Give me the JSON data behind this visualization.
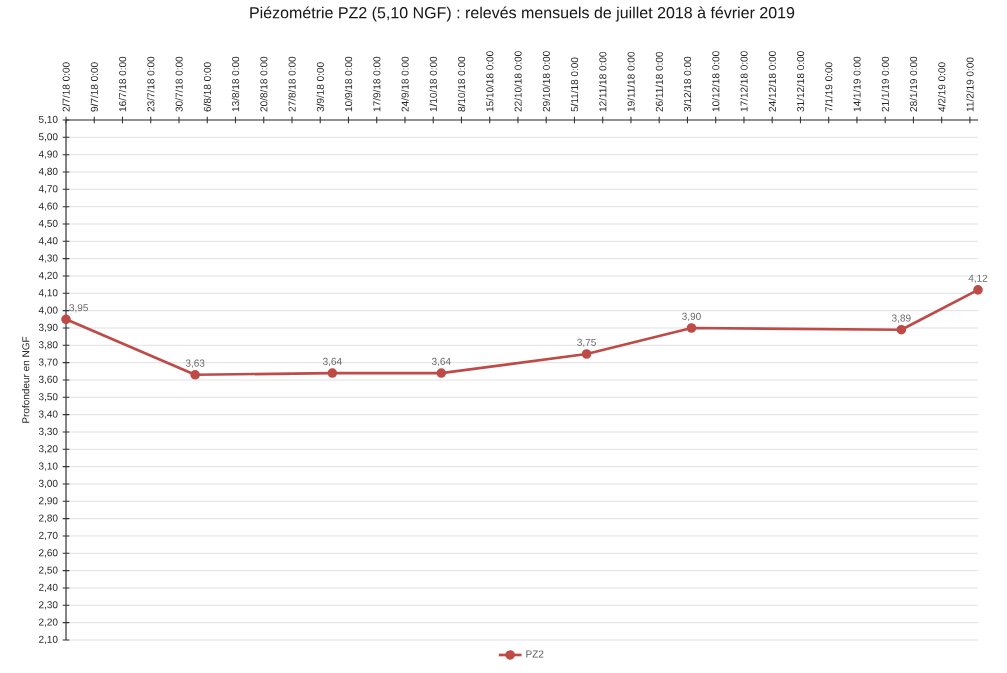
{
  "chart_data": {
    "type": "line",
    "title": "Piézométrie PZ2 (5,10 NGF) : relevés mensuels de juillet 2018 à février 2019",
    "ylabel": "Profondeur en NGF",
    "x": [
      "2018-07-02",
      "2018-08-03",
      "2018-09-06",
      "2018-10-03",
      "2018-11-08",
      "2018-12-04",
      "2019-01-25",
      "2019-02-13"
    ],
    "series": [
      {
        "name": "PZ2",
        "color": "#be4b48",
        "values": [
          3.95,
          3.63,
          3.64,
          3.64,
          3.75,
          3.9,
          3.89,
          4.12
        ],
        "value_labels": [
          "3,95",
          "3,63",
          "3,64",
          "3,64",
          "3,75",
          "3,90",
          "3,89",
          "4,12"
        ]
      }
    ],
    "xlim": [
      "2018-07-02",
      "2019-02-13"
    ],
    "xticks": [
      {
        "value": "2018-07-02",
        "label": "2/7/18 0:00"
      },
      {
        "value": "2018-07-09",
        "label": "9/7/18 0:00"
      },
      {
        "value": "2018-07-16",
        "label": "16/7/18 0:00"
      },
      {
        "value": "2018-07-23",
        "label": "23/7/18 0:00"
      },
      {
        "value": "2018-07-30",
        "label": "30/7/18 0:00"
      },
      {
        "value": "2018-08-06",
        "label": "6/8/18 0:00"
      },
      {
        "value": "2018-08-13",
        "label": "13/8/18 0:00"
      },
      {
        "value": "2018-08-20",
        "label": "20/8/18 0:00"
      },
      {
        "value": "2018-08-27",
        "label": "27/8/18 0:00"
      },
      {
        "value": "2018-09-03",
        "label": "3/9/18 0:00"
      },
      {
        "value": "2018-09-10",
        "label": "10/9/18 0:00"
      },
      {
        "value": "2018-09-17",
        "label": "17/9/18 0:00"
      },
      {
        "value": "2018-09-24",
        "label": "24/9/18 0:00"
      },
      {
        "value": "2018-10-01",
        "label": "1/10/18 0:00"
      },
      {
        "value": "2018-10-08",
        "label": "8/10/18 0:00"
      },
      {
        "value": "2018-10-15",
        "label": "15/10/18 0:00"
      },
      {
        "value": "2018-10-22",
        "label": "22/10/18 0:00"
      },
      {
        "value": "2018-10-29",
        "label": "29/10/18 0:00"
      },
      {
        "value": "2018-11-05",
        "label": "5/11/18 0:00"
      },
      {
        "value": "2018-11-12",
        "label": "12/11/18 0:00"
      },
      {
        "value": "2018-11-19",
        "label": "19/11/18 0:00"
      },
      {
        "value": "2018-11-26",
        "label": "26/11/18 0:00"
      },
      {
        "value": "2018-12-03",
        "label": "3/12/18 0:00"
      },
      {
        "value": "2018-12-10",
        "label": "10/12/18 0:00"
      },
      {
        "value": "2018-12-17",
        "label": "17/12/18 0:00"
      },
      {
        "value": "2018-12-24",
        "label": "24/12/18 0:00"
      },
      {
        "value": "2018-12-31",
        "label": "31/12/18 0:00"
      },
      {
        "value": "2019-01-07",
        "label": "7/1/19 0:00"
      },
      {
        "value": "2019-01-14",
        "label": "14/1/19 0:00"
      },
      {
        "value": "2019-01-21",
        "label": "21/1/19 0:00"
      },
      {
        "value": "2019-01-28",
        "label": "28/1/19 0:00"
      },
      {
        "value": "2019-02-04",
        "label": "4/2/19 0:00"
      },
      {
        "value": "2019-02-11",
        "label": "11/2/19 0:00"
      }
    ],
    "ylim": [
      2.1,
      5.1
    ],
    "yticks": [
      {
        "value": 2.1,
        "label": "2,10"
      },
      {
        "value": 2.2,
        "label": "2,20"
      },
      {
        "value": 2.3,
        "label": "2,30"
      },
      {
        "value": 2.4,
        "label": "2,40"
      },
      {
        "value": 2.5,
        "label": "2,50"
      },
      {
        "value": 2.6,
        "label": "2,60"
      },
      {
        "value": 2.7,
        "label": "2,70"
      },
      {
        "value": 2.8,
        "label": "2,80"
      },
      {
        "value": 2.9,
        "label": "2,90"
      },
      {
        "value": 3.0,
        "label": "3,00"
      },
      {
        "value": 3.1,
        "label": "3,10"
      },
      {
        "value": 3.2,
        "label": "3,20"
      },
      {
        "value": 3.3,
        "label": "3,30"
      },
      {
        "value": 3.4,
        "label": "3,40"
      },
      {
        "value": 3.5,
        "label": "3,50"
      },
      {
        "value": 3.6,
        "label": "3,60"
      },
      {
        "value": 3.7,
        "label": "3,70"
      },
      {
        "value": 3.8,
        "label": "3,80"
      },
      {
        "value": 3.9,
        "label": "3,90"
      },
      {
        "value": 4.0,
        "label": "4,00"
      },
      {
        "value": 4.1,
        "label": "4,10"
      },
      {
        "value": 4.2,
        "label": "4,20"
      },
      {
        "value": 4.3,
        "label": "4,30"
      },
      {
        "value": 4.4,
        "label": "4,40"
      },
      {
        "value": 4.5,
        "label": "4,50"
      },
      {
        "value": 4.6,
        "label": "4,60"
      },
      {
        "value": 4.7,
        "label": "4,70"
      },
      {
        "value": 4.8,
        "label": "4,80"
      },
      {
        "value": 4.9,
        "label": "4,90"
      },
      {
        "value": 5.0,
        "label": "5,00"
      },
      {
        "value": 5.1,
        "label": "5,10"
      }
    ],
    "grid": "y",
    "legend": "bottom",
    "marker": "circle",
    "line_style": "solid"
  }
}
